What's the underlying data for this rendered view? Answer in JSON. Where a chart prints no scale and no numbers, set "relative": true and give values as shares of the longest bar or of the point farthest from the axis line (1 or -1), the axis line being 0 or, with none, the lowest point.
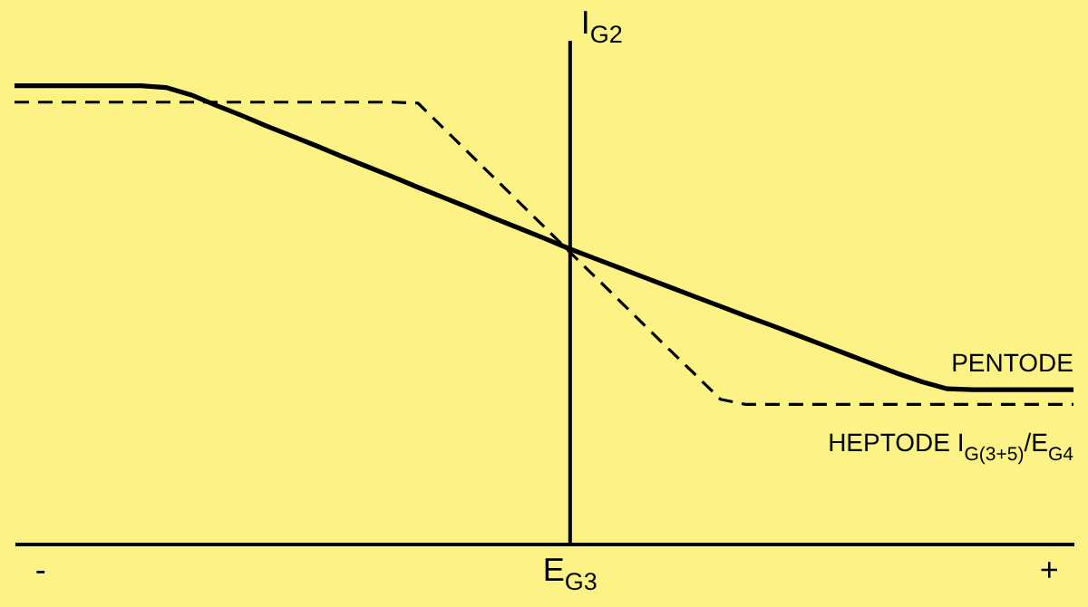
{
  "chart_data": {
    "type": "line",
    "relative": true,
    "ylabel": "I$_{G2}$",
    "categories": [
      null,
      "-",
      null,
      null,
      null,
      null,
      null,
      null,
      null,
      null,
      null,
      null,
      null,
      null,
      null,
      null,
      null,
      null,
      null,
      null,
      null,
      null,
      "E$_{G3}$",
      null,
      null,
      null,
      null,
      null,
      null,
      null,
      null,
      null,
      null,
      null,
      null,
      null,
      null,
      null,
      null,
      null,
      null,
      "+",
      null
    ],
    "legend": false,
    "marker": "none",
    "series": [
      {
        "name": "PENTODE",
        "color": "#000000",
        "line_style": "solid",
        "values": [
          1,
          1,
          1,
          1,
          1,
          1,
          0.996,
          0.98,
          0.957,
          0.935,
          0.912,
          0.89,
          0.868,
          0.845,
          0.823,
          0.801,
          0.778,
          0.756,
          0.734,
          0.711,
          0.689,
          0.667,
          0.644,
          0.623,
          0.602,
          0.581,
          0.56,
          0.539,
          0.518,
          0.497,
          0.477,
          0.456,
          0.435,
          0.414,
          0.393,
          0.372,
          0.353,
          0.338,
          0.336,
          0.336,
          0.336,
          0.336,
          0.336
        ]
      },
      {
        "name": "HEPTODE I$_{G(3+5)}$/E$_{G4}$",
        "color": "#000000",
        "line_style": "dashed",
        "values": [
          0.964,
          0.964,
          0.964,
          0.964,
          0.964,
          0.964,
          0.964,
          0.964,
          0.964,
          0.964,
          0.964,
          0.964,
          0.964,
          0.964,
          0.964,
          0.964,
          0.962,
          0.908,
          0.854,
          0.8,
          0.746,
          0.692,
          0.638,
          0.584,
          0.53,
          0.476,
          0.422,
          0.369,
          0.315,
          0.304,
          0.304,
          0.304,
          0.304,
          0.304,
          0.304,
          0.304,
          0.304,
          0.304,
          0.304,
          0.304,
          0.304,
          0.304,
          0.304
        ]
      }
    ]
  }
}
